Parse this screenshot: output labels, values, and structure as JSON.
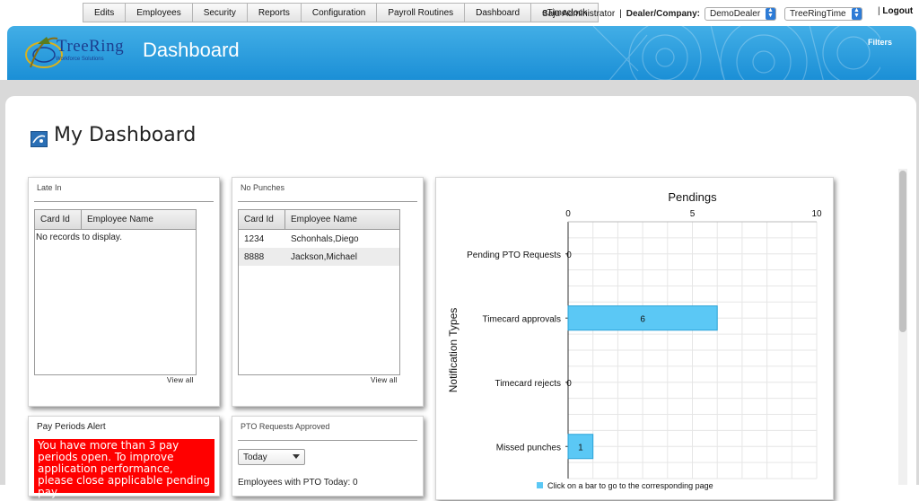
{
  "menu": {
    "items": [
      "Edits",
      "Employees",
      "Security",
      "Reports",
      "Configuration",
      "Payroll Routines",
      "Dashboard",
      "eTimeclock"
    ]
  },
  "user": {
    "name": "Saju Administrator",
    "sep": "|",
    "dealer_label": "Dealer/Company:",
    "dealer_value": "DemoDealer",
    "company_value": "TreeRingTime",
    "logout_sep": "|",
    "logout": "Logout"
  },
  "header": {
    "logo_text": "TreeRing",
    "logo_sub": "Workforce Solutions",
    "title": "Dashboard",
    "filters": "Filters"
  },
  "page": {
    "title": "My Dashboard"
  },
  "widgets": {
    "late_in": {
      "title": "Late In",
      "columns": [
        "Card Id",
        "Employee Name"
      ],
      "empty_text": "No records to display.",
      "view_all": "View all"
    },
    "no_punches": {
      "title": "No Punches",
      "columns": [
        "Card Id",
        "Employee Name"
      ],
      "rows": [
        {
          "card_id": "1234",
          "name": "Schonhals,Diego"
        },
        {
          "card_id": "8888",
          "name": "Jackson,Michael"
        }
      ],
      "view_all": "View all"
    },
    "pay_periods": {
      "title": "Pay Periods Alert",
      "alert": "You have more than 3 pay periods open. To improve application performance, please close applicable pending pay"
    },
    "pto_approved": {
      "title": "PTO Requests Approved",
      "select_value": "Today",
      "count_text": "Employees with PTO Today: 0"
    }
  },
  "colors": {
    "header_blue": "#1b8fd6",
    "bar_fill": "#5bc8f5",
    "alert_red": "#ff0000"
  },
  "chart_data": {
    "type": "bar",
    "orientation": "horizontal",
    "title": "Pendings",
    "xlabel": "",
    "ylabel": "Notification Types",
    "categories": [
      "Pending PTO Requests",
      "Timecard approvals",
      "Timecard rejects",
      "Missed punches"
    ],
    "values": [
      0,
      6,
      0,
      1
    ],
    "xlim": [
      0,
      10
    ],
    "xticks": [
      0,
      5,
      10
    ],
    "grid": true,
    "legend_text": "Click on a bar to go to the corresponding page"
  }
}
